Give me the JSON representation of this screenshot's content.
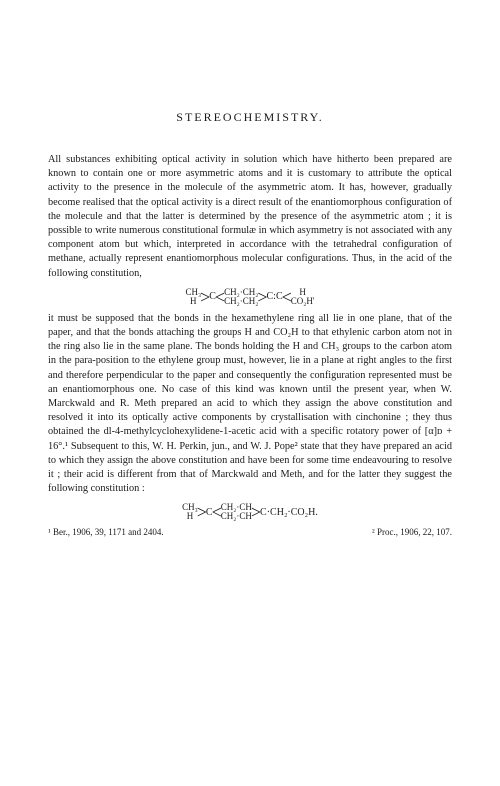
{
  "title": "STEREOCHEMISTRY.",
  "paragraphs": {
    "p1": "All substances exhibiting optical activity in solution which have hitherto been prepared are known to contain one or more asymmetric atoms and it is customary to attribute the optical activity to the presence in the molecule of the asymmetric atom. It has, however, gradually become realised that the optical activity is a direct result of the enantiomorphous configuration of the molecule and that the latter is determined by the presence of the asymmetric atom ; it is possible to write numerous constitutional formulæ in which asymmetry is not associated with any component atom but which, interpreted in accordance with the tetrahedral configuration of methane, actually represent enantiomorphous molecular configurations. Thus, in the acid of the following constitution,",
    "p2": "it must be supposed that the bonds in the hexamethylene ring all lie in one plane, that of the paper, and that the bonds attaching the groups H and CO₂H to that ethylenic carbon atom not in the ring also lie in the same plane. The bonds holding the H and CH₃ groups to the carbon atom in the para-position to the ethylene group must, however, lie in a plane at right angles to the first and therefore perpendicular to the paper and consequently the configuration represented must be an enantiomorphous one. No case of this kind was known until the present year, when W. Marckwald and R. Meth prepared an acid to which they assign the above constitution and resolved it into its optically active components by crystallisation with cinchonine ; they thus obtained the dl-4-methylcyclohexylidene-1-acetic acid with a specific rotatory power of [α]ᴅ + 16°.¹ Subsequent to this, W. H. Perkin, jun., and W. J. Pope² state that they have prepared an acid to which they assign the above constitution and have been for some time endeavouring to resolve it ; their acid is different from that of Marckwald and Meth, and for the latter they suggest the following constitution :"
  },
  "formula1": {
    "left_top": "CH₃",
    "left_bot": "H",
    "mid_top": "CH₂·CH₂",
    "mid_bot": "CH₂·CH₂",
    "right_top": "H",
    "right_bot": "CO₂H'",
    "c1": "C",
    "cc": "C:C"
  },
  "formula2": {
    "left_top": "CH₃",
    "left_bot": "H",
    "mid_top": "CH₂·CH",
    "mid_bot": "CH₂·CH",
    "c1": "C",
    "c2": "C·CH₂·CO₂H."
  },
  "footnotes": {
    "f1": "¹ Ber., 1906, 39, 1171 and 2404.",
    "f2": "² Proc., 1906, 22, 107."
  },
  "colors": {
    "bg": "#ffffff",
    "text": "#1a1a1a"
  },
  "fonts": {
    "body_family": "Times New Roman",
    "body_size_pt": 10.3,
    "title_size_pt": 12,
    "footnote_size_pt": 9
  }
}
